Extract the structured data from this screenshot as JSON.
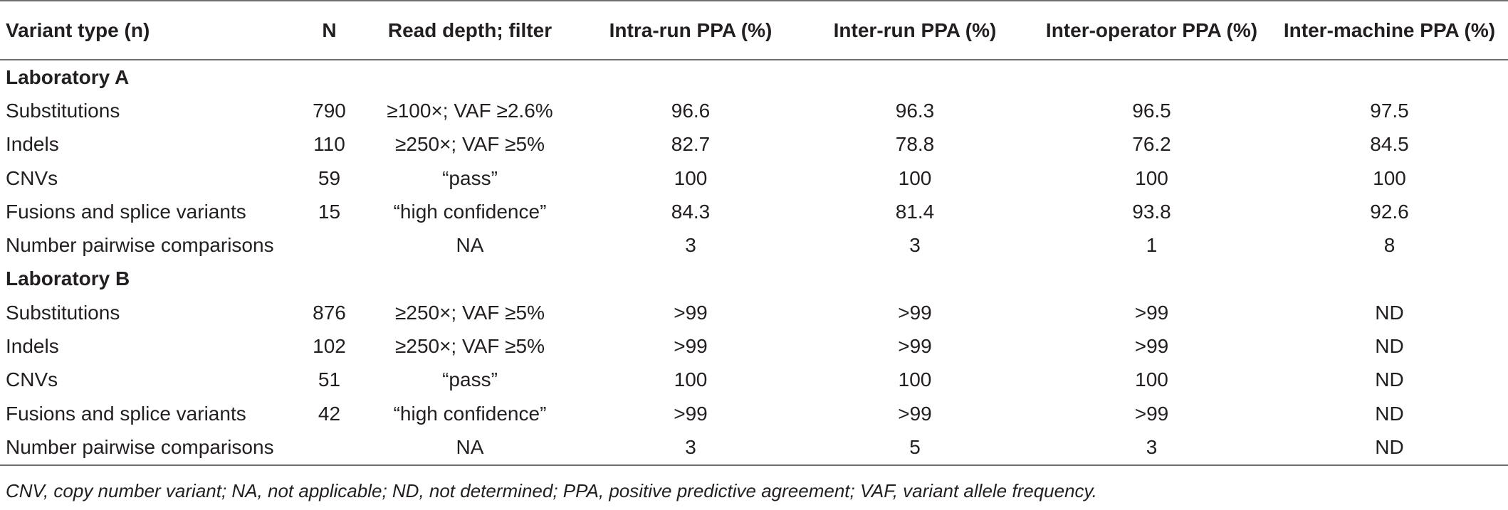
{
  "table": {
    "headers": [
      "Variant type (n)",
      "N",
      "Read depth; filter",
      "Intra-run PPA (%)",
      "Inter-run PPA (%)",
      "Inter-operator PPA (%)",
      "Inter-machine PPA (%)"
    ],
    "sections": [
      {
        "title": "Laboratory A",
        "rows": [
          [
            "Substitutions",
            "790",
            "≥100×; VAF ≥2.6%",
            "96.6",
            "96.3",
            "96.5",
            "97.5"
          ],
          [
            "Indels",
            "110",
            "≥250×; VAF ≥5%",
            "82.7",
            "78.8",
            "76.2",
            "84.5"
          ],
          [
            "CNVs",
            "59",
            "“pass”",
            "100",
            "100",
            "100",
            "100"
          ],
          [
            "Fusions and splice variants",
            "15",
            "“high confidence”",
            "84.3",
            "81.4",
            "93.8",
            "92.6"
          ],
          [
            "Number pairwise comparisons",
            "",
            "NA",
            "3",
            "3",
            "1",
            "8"
          ]
        ]
      },
      {
        "title": "Laboratory B",
        "rows": [
          [
            "Substitutions",
            "876",
            "≥250×; VAF ≥5%",
            ">99",
            ">99",
            ">99",
            "ND"
          ],
          [
            "Indels",
            "102",
            "≥250×; VAF ≥5%",
            ">99",
            ">99",
            ">99",
            "ND"
          ],
          [
            "CNVs",
            "51",
            "“pass”",
            "100",
            "100",
            "100",
            "ND"
          ],
          [
            "Fusions and splice variants",
            "42",
            "“high confidence”",
            ">99",
            ">99",
            ">99",
            "ND"
          ],
          [
            "Number pairwise comparisons",
            "",
            "NA",
            "3",
            "5",
            "3",
            "ND"
          ]
        ]
      }
    ]
  },
  "footnote": "CNV, copy number variant; NA, not applicable; ND, not determined; PPA, positive predictive agreement; VAF, variant allele frequency."
}
